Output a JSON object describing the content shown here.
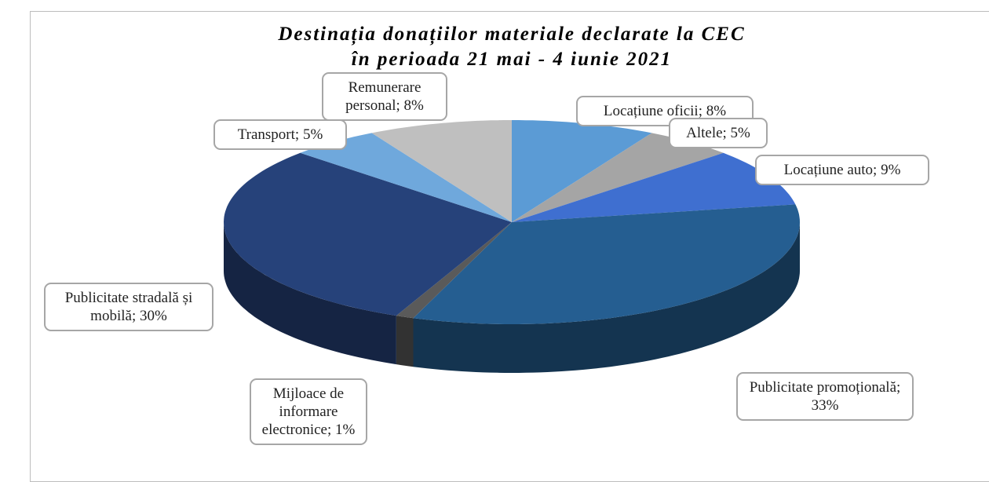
{
  "chart_data": {
    "type": "pie3d",
    "title": "Destinația donațiilor materiale declarate la CEC\nîn perioada 21 mai - 4 iunie 2021",
    "values": [
      8,
      5,
      9,
      33,
      1,
      30,
      5,
      8
    ],
    "value_labels": [
      "Locațiune oficii; 8%",
      "Altele; 5%",
      "Locațiune auto; 9%",
      "Publicitate promoțională; 33%",
      "Mijloace de informare electronice; 1%",
      "Publicitate stradală și mobilă; 30%",
      "Transport; 5%",
      "Remunerare personal; 8%"
    ],
    "colors": [
      "#5b9bd5",
      "#a5a5a5",
      "#3f6fd0",
      "#255e91",
      "#5a5a5a",
      "#26427a",
      "#6fa8dc",
      "#bfbfbf"
    ]
  }
}
